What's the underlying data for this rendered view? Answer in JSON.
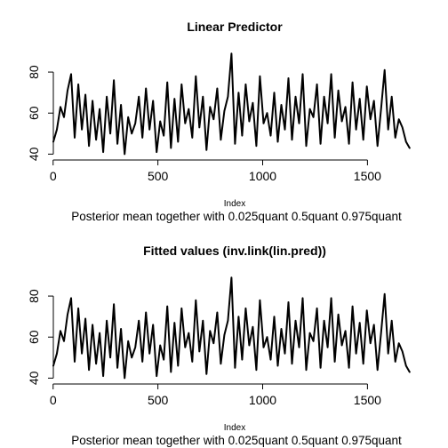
{
  "chart_data": [
    {
      "type": "line",
      "title": "Linear Predictor",
      "xlabel": "Index",
      "ylabel": "",
      "subtitle": "Posterior mean together with  0.025quant 0.5quant 0.975quant",
      "xlim": [
        1,
        1702
      ],
      "ylim": [
        38,
        90
      ],
      "x_ticks": [
        0,
        500,
        1000,
        1500
      ],
      "y_ticks": [
        40,
        60,
        80
      ],
      "grid": false,
      "series": [
        {
          "x": [
            1,
            18,
            35,
            52,
            69,
            86,
            103,
            120,
            137,
            154,
            171,
            188,
            205,
            222,
            239,
            256,
            273,
            290,
            307,
            324,
            341,
            358,
            375,
            392,
            409,
            426,
            443,
            460,
            477,
            494,
            511,
            528,
            545,
            562,
            579,
            596,
            613,
            630,
            647,
            664,
            681,
            698,
            715,
            732,
            749,
            766,
            783,
            800,
            817,
            834,
            851,
            868,
            885,
            902,
            919,
            936,
            953,
            970,
            987,
            1004,
            1021,
            1038,
            1055,
            1072,
            1089,
            1106,
            1123,
            1140,
            1157,
            1174,
            1191,
            1208,
            1225,
            1242,
            1259,
            1276,
            1293,
            1310,
            1327,
            1344,
            1361,
            1378,
            1395,
            1412,
            1429,
            1446,
            1463,
            1480,
            1497,
            1514,
            1531,
            1548,
            1565,
            1582,
            1599,
            1616,
            1633,
            1650,
            1667,
            1684,
            1701
          ],
          "y": [
            46,
            52,
            63,
            58,
            71,
            79,
            48,
            74,
            52,
            69,
            44,
            66,
            47,
            62,
            41,
            68,
            50,
            76,
            45,
            64,
            40,
            58,
            50,
            55,
            68,
            48,
            72,
            52,
            66,
            41,
            56,
            49,
            75,
            43,
            67,
            46,
            74,
            55,
            62,
            48,
            78,
            53,
            68,
            42,
            63,
            57,
            72,
            47,
            61,
            68,
            89,
            45,
            70,
            49,
            74,
            56,
            65,
            44,
            78,
            55,
            60,
            49,
            70,
            46,
            64,
            52,
            77,
            47,
            68,
            55,
            79,
            44,
            62,
            58,
            74,
            45,
            68,
            55,
            79,
            48,
            71,
            56,
            63,
            45,
            75,
            52,
            67,
            47,
            73,
            57,
            66,
            44,
            62,
            81,
            52,
            68,
            48,
            57,
            53,
            46,
            43
          ]
        }
      ]
    },
    {
      "type": "line",
      "title": "Fitted values (inv.link(lin.pred))",
      "xlabel": "Index",
      "ylabel": "",
      "subtitle": "Posterior mean together with  0.025quant 0.5quant 0.975quant",
      "xlim": [
        1,
        1702
      ],
      "ylim": [
        38,
        90
      ],
      "x_ticks": [
        0,
        500,
        1000,
        1500
      ],
      "y_ticks": [
        40,
        60,
        80
      ],
      "grid": false,
      "series": [
        {
          "x": [
            1,
            18,
            35,
            52,
            69,
            86,
            103,
            120,
            137,
            154,
            171,
            188,
            205,
            222,
            239,
            256,
            273,
            290,
            307,
            324,
            341,
            358,
            375,
            392,
            409,
            426,
            443,
            460,
            477,
            494,
            511,
            528,
            545,
            562,
            579,
            596,
            613,
            630,
            647,
            664,
            681,
            698,
            715,
            732,
            749,
            766,
            783,
            800,
            817,
            834,
            851,
            868,
            885,
            902,
            919,
            936,
            953,
            970,
            987,
            1004,
            1021,
            1038,
            1055,
            1072,
            1089,
            1106,
            1123,
            1140,
            1157,
            1174,
            1191,
            1208,
            1225,
            1242,
            1259,
            1276,
            1293,
            1310,
            1327,
            1344,
            1361,
            1378,
            1395,
            1412,
            1429,
            1446,
            1463,
            1480,
            1497,
            1514,
            1531,
            1548,
            1565,
            1582,
            1599,
            1616,
            1633,
            1650,
            1667,
            1684,
            1701
          ],
          "y": [
            46,
            52,
            63,
            58,
            71,
            79,
            48,
            74,
            52,
            69,
            44,
            66,
            47,
            62,
            41,
            68,
            50,
            76,
            45,
            64,
            40,
            58,
            50,
            55,
            68,
            48,
            72,
            52,
            66,
            41,
            56,
            49,
            75,
            43,
            67,
            46,
            74,
            55,
            62,
            48,
            78,
            53,
            68,
            42,
            63,
            57,
            72,
            47,
            61,
            68,
            89,
            45,
            70,
            49,
            74,
            56,
            65,
            44,
            78,
            55,
            60,
            49,
            70,
            46,
            64,
            52,
            77,
            47,
            68,
            55,
            79,
            44,
            62,
            58,
            74,
            45,
            68,
            55,
            79,
            48,
            71,
            56,
            63,
            45,
            75,
            52,
            67,
            47,
            73,
            57,
            66,
            44,
            62,
            81,
            52,
            68,
            48,
            57,
            53,
            46,
            43
          ]
        }
      ]
    }
  ]
}
